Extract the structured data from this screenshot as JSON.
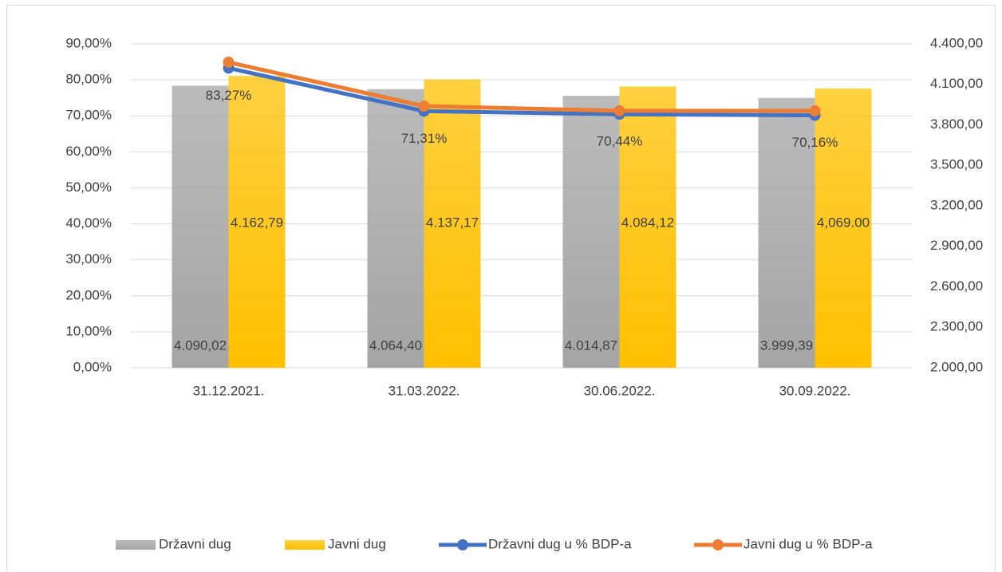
{
  "chart_data": {
    "type": "bar",
    "categories": [
      "31.12.2021.",
      "31.03.2022.",
      "30.06.2022.",
      "30.09.2022."
    ],
    "series": [
      {
        "name": "Državni dug",
        "color": "#a5a5a5",
        "type": "bar",
        "axis": "y2",
        "values": [
          4090.02,
          4064.4,
          4014.87,
          3999.39
        ],
        "value_labels": [
          "4.090,02",
          "4.064,40",
          "4.014,87",
          "3.999,39"
        ]
      },
      {
        "name": "Javni dug",
        "color": "#ffc000",
        "type": "bar",
        "axis": "y2",
        "values": [
          4162.79,
          4137.17,
          4084.12,
          4069.0
        ],
        "value_labels": [
          "4.162,79",
          "4.137,17",
          "4.084,12",
          "4,069.00"
        ]
      },
      {
        "name": "Državni dug u % BDP-a",
        "color": "#4472c4",
        "type": "line",
        "values": [
          83.27,
          71.31,
          70.44,
          70.16
        ],
        "value_labels": [
          "83,27%",
          "71,31%",
          "70,44%",
          "70,16%"
        ]
      },
      {
        "name": "Javni dug u % BDP-a",
        "color": "#ed7d31",
        "type": "line",
        "values": [
          84.9,
          72.7,
          71.4,
          71.4
        ]
      }
    ],
    "ylim": [
      0,
      90
    ],
    "yticks": [
      {
        "value": 0,
        "label": "0,00%"
      },
      {
        "value": 10,
        "label": "10,00%"
      },
      {
        "value": 20,
        "label": "20,00%"
      },
      {
        "value": 30,
        "label": "30,00%"
      },
      {
        "value": 40,
        "label": "40,00%"
      },
      {
        "value": 50,
        "label": "50,00%"
      },
      {
        "value": 60,
        "label": "60,00%"
      },
      {
        "value": 70,
        "label": "70,00%"
      },
      {
        "value": 80,
        "label": "80,00%"
      },
      {
        "value": 90,
        "label": "90,00%"
      }
    ],
    "y2lim": [
      2000,
      4400
    ],
    "y2ticks": [
      {
        "value": 2000,
        "label": "2.000,00"
      },
      {
        "value": 2300,
        "label": "2.300,00"
      },
      {
        "value": 2600,
        "label": "2.600,00"
      },
      {
        "value": 2900,
        "label": "2.900,00"
      },
      {
        "value": 3200,
        "label": "3.200,00"
      },
      {
        "value": 3500,
        "label": "3.500,00"
      },
      {
        "value": 3800,
        "label": "3.800,00"
      },
      {
        "value": 4100,
        "label": "4.100,00"
      },
      {
        "value": 4400,
        "label": "4.400,00"
      }
    ],
    "grid": true,
    "legend": "bottom"
  }
}
